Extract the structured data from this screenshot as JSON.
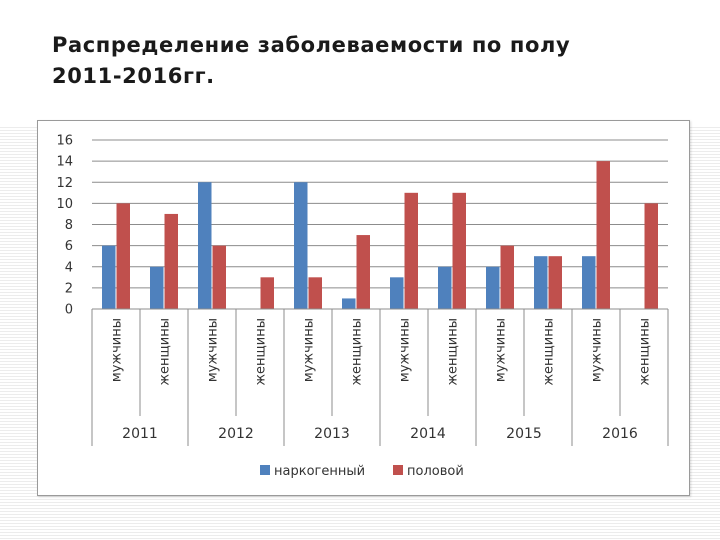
{
  "slide": {
    "title_line1": "Распределение заболеваемости по полу",
    "title_line2": "2011-2016гг."
  },
  "chart_data": {
    "type": "bar",
    "title": "",
    "ylim": [
      0,
      16
    ],
    "yticks": [
      0,
      2,
      4,
      6,
      8,
      10,
      12,
      14,
      16
    ],
    "grid": true,
    "legend_position": "bottom",
    "years": [
      "2011",
      "2012",
      "2013",
      "2014",
      "2015",
      "2016"
    ],
    "categories": [
      "мужчины",
      "женщины",
      "мужчины",
      "женщины",
      "мужчины",
      "женщины",
      "мужчины",
      "женщины",
      "мужчины",
      "женщины",
      "мужчины",
      "женщины"
    ],
    "series": [
      {
        "name": "наркогенный",
        "color": "#4F81BD",
        "values": [
          6,
          4,
          12,
          0,
          12,
          1,
          3,
          4,
          4,
          5,
          5,
          0
        ]
      },
      {
        "name": "половой",
        "color": "#C0504D",
        "values": [
          10,
          9,
          6,
          3,
          3,
          7,
          11,
          11,
          6,
          5,
          14,
          10
        ]
      }
    ]
  }
}
